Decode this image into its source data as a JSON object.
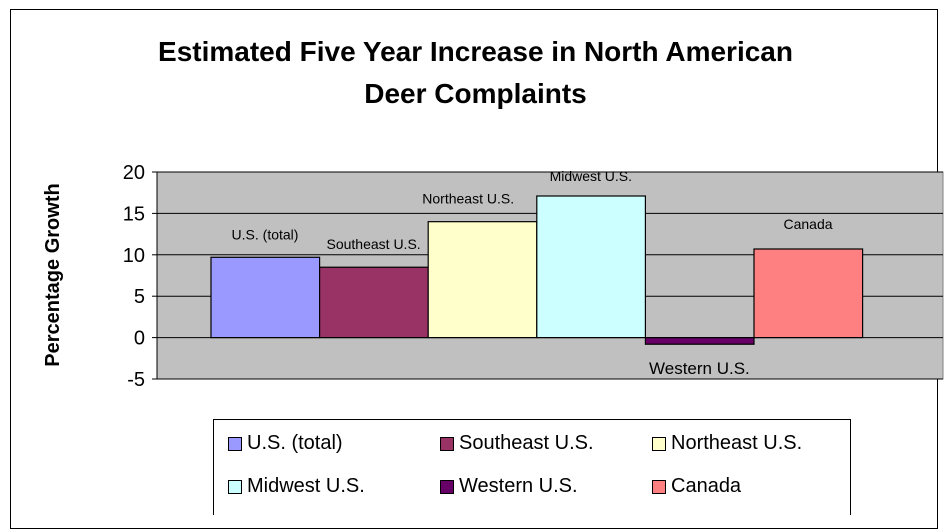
{
  "chart_data": {
    "type": "bar",
    "title_lines": [
      "Estimated Five Year Increase in North American",
      "Deer Complaints"
    ],
    "xlabel": "",
    "ylabel": "Percentage Growth",
    "ylim": [
      -5,
      20
    ],
    "yticks": [
      -5,
      0,
      5,
      10,
      15,
      20
    ],
    "grid": true,
    "legend_position": "bottom",
    "series": [
      {
        "name": "U.S. (total)",
        "value": 9.7,
        "color": "#9999ff",
        "label": "U.S. (total)"
      },
      {
        "name": "Southeast U.S.",
        "value": 8.5,
        "color": "#993366",
        "label": "Southeast U.S."
      },
      {
        "name": "Northeast U.S.",
        "value": 14.0,
        "color": "#ffffcc",
        "label": "Northeast U.S."
      },
      {
        "name": "Midwest U.S.",
        "value": 17.1,
        "color": "#ccffff",
        "label": "Midwest U.S."
      },
      {
        "name": "Western U.S.",
        "value": -0.8,
        "color": "#660066",
        "label": "Western U.S."
      },
      {
        "name": "Canada",
        "value": 10.7,
        "color": "#ff8080",
        "label": "Canada"
      }
    ]
  },
  "colors": {
    "plot_background": "#c0c0c0",
    "gridline": "#000000"
  }
}
